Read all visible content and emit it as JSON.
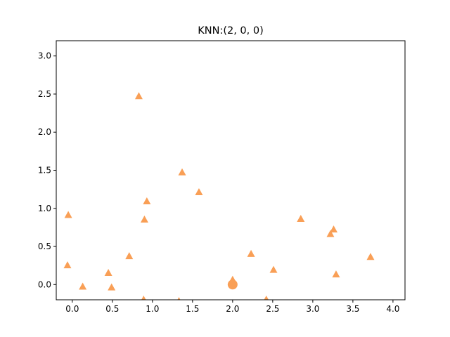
{
  "chart_data": {
    "type": "scatter",
    "title": "KNN:(2, 0, 0)",
    "xlabel": "",
    "ylabel": "",
    "xlim": [
      -0.2,
      4.15
    ],
    "ylim": [
      -0.2,
      3.2
    ],
    "xticks": [
      "0.0",
      "0.5",
      "1.0",
      "1.5",
      "2.0",
      "2.5",
      "3.0",
      "3.5",
      "4.0"
    ],
    "yticks": [
      "0.0",
      "0.5",
      "1.0",
      "1.5",
      "2.0",
      "2.5",
      "3.0"
    ],
    "grid": false,
    "marker_color": "#f99f56",
    "series": [
      {
        "marker": "triangle",
        "points": [
          [
            0.83,
            2.47
          ],
          [
            1.37,
            1.47
          ],
          [
            1.58,
            1.21
          ],
          [
            0.93,
            1.09
          ],
          [
            -0.05,
            0.91
          ],
          [
            0.9,
            0.85
          ],
          [
            2.85,
            0.86
          ],
          [
            3.26,
            0.72
          ],
          [
            3.22,
            0.66
          ],
          [
            0.71,
            0.37
          ],
          [
            2.23,
            0.4
          ],
          [
            3.72,
            0.36
          ],
          [
            -0.06,
            0.25
          ],
          [
            0.45,
            0.15
          ],
          [
            2.51,
            0.19
          ],
          [
            3.29,
            0.13
          ],
          [
            0.13,
            -0.03
          ],
          [
            0.49,
            -0.04
          ],
          [
            2.0,
            0.06
          ],
          [
            0.89,
            -0.2
          ],
          [
            1.33,
            -0.22
          ],
          [
            2.42,
            -0.2
          ]
        ]
      },
      {
        "marker": "circle",
        "points": [
          [
            2.0,
            0.0
          ]
        ]
      }
    ]
  }
}
